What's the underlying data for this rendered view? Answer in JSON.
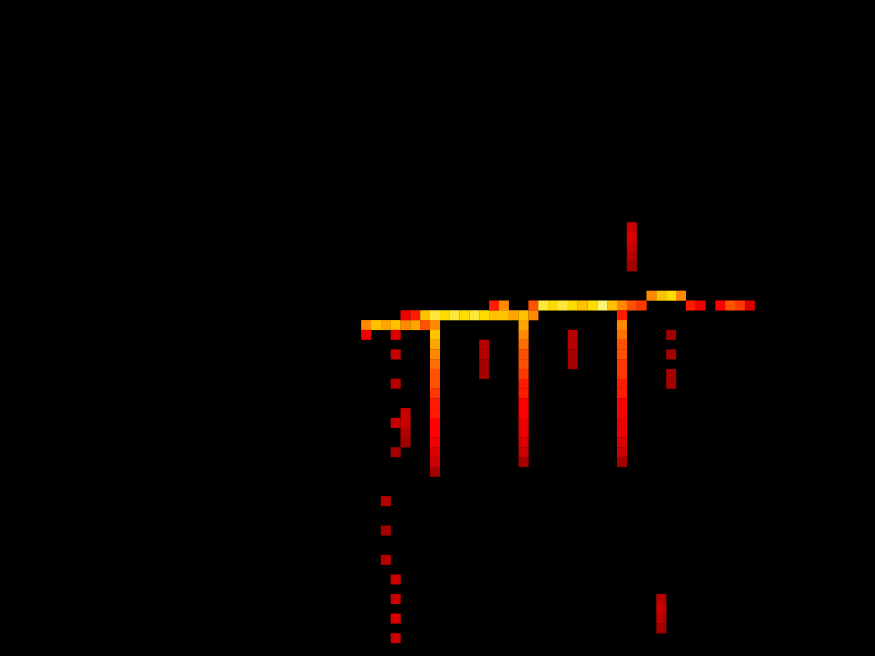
{
  "chart_data": {
    "type": "heatmap",
    "tick_labels": false,
    "grid": false,
    "xlim": [
      -0.5,
      87
    ],
    "ylim": [
      -0.5,
      65.1
    ],
    "zlim": [
      0,
      1
    ],
    "cells": [
      [
        36,
        32,
        0.7
      ],
      [
        36,
        33,
        0.4
      ],
      [
        37,
        32,
        0.8
      ],
      [
        38,
        32,
        0.75
      ],
      [
        39,
        32,
        0.8
      ],
      [
        40,
        32,
        0.7
      ],
      [
        40,
        31,
        0.4
      ],
      [
        41,
        32,
        0.75
      ],
      [
        41,
        31,
        0.5
      ],
      [
        42,
        31,
        0.8
      ],
      [
        42,
        32,
        0.6
      ],
      [
        43,
        31,
        0.9
      ],
      [
        43,
        32,
        0.7
      ],
      [
        44,
        31,
        0.85
      ],
      [
        45,
        31,
        0.9
      ],
      [
        46,
        31,
        0.85
      ],
      [
        47,
        31,
        0.9
      ],
      [
        48,
        31,
        0.85
      ],
      [
        49,
        31,
        0.8
      ],
      [
        49,
        30,
        0.5
      ],
      [
        50,
        30,
        0.7
      ],
      [
        50,
        31,
        0.8
      ],
      [
        51,
        31,
        0.75
      ],
      [
        52,
        31,
        0.8
      ],
      [
        53,
        31,
        0.7
      ],
      [
        53,
        30,
        0.6
      ],
      [
        54,
        30,
        0.9
      ],
      [
        55,
        30,
        0.85
      ],
      [
        56,
        30,
        0.9
      ],
      [
        57,
        30,
        0.85
      ],
      [
        58,
        30,
        0.8
      ],
      [
        59,
        30,
        0.85
      ],
      [
        60,
        30,
        0.95
      ],
      [
        61,
        30,
        0.8
      ],
      [
        62,
        30,
        0.7
      ],
      [
        62,
        31,
        0.5
      ],
      [
        63,
        30,
        0.6
      ],
      [
        64,
        30,
        0.55
      ],
      [
        65,
        29,
        0.7
      ],
      [
        66,
        29,
        0.8
      ],
      [
        67,
        29,
        0.85
      ],
      [
        68,
        29,
        0.7
      ],
      [
        69,
        30,
        0.5
      ],
      [
        70,
        30,
        0.4
      ],
      [
        72,
        30,
        0.45
      ],
      [
        73,
        30,
        0.6
      ],
      [
        74,
        30,
        0.55
      ],
      [
        75,
        30,
        0.35
      ],
      [
        43,
        33,
        0.8
      ],
      [
        43,
        34,
        0.75
      ],
      [
        43,
        35,
        0.7
      ],
      [
        43,
        36,
        0.65
      ],
      [
        43,
        37,
        0.6
      ],
      [
        43,
        38,
        0.6
      ],
      [
        43,
        39,
        0.55
      ],
      [
        43,
        40,
        0.5
      ],
      [
        43,
        41,
        0.5
      ],
      [
        43,
        42,
        0.45
      ],
      [
        43,
        43,
        0.45
      ],
      [
        43,
        44,
        0.4
      ],
      [
        43,
        45,
        0.35
      ],
      [
        43,
        46,
        0.3
      ],
      [
        43,
        47,
        0.2
      ],
      [
        52,
        32,
        0.75
      ],
      [
        52,
        33,
        0.7
      ],
      [
        52,
        34,
        0.65
      ],
      [
        52,
        35,
        0.6
      ],
      [
        52,
        36,
        0.6
      ],
      [
        52,
        37,
        0.55
      ],
      [
        52,
        38,
        0.5
      ],
      [
        52,
        39,
        0.5
      ],
      [
        52,
        40,
        0.45
      ],
      [
        52,
        41,
        0.45
      ],
      [
        52,
        42,
        0.4
      ],
      [
        52,
        43,
        0.4
      ],
      [
        52,
        44,
        0.35
      ],
      [
        52,
        45,
        0.3
      ],
      [
        52,
        46,
        0.2
      ],
      [
        62,
        32,
        0.7
      ],
      [
        62,
        33,
        0.65
      ],
      [
        62,
        34,
        0.6
      ],
      [
        62,
        35,
        0.6
      ],
      [
        62,
        36,
        0.55
      ],
      [
        62,
        37,
        0.55
      ],
      [
        62,
        38,
        0.5
      ],
      [
        62,
        39,
        0.5
      ],
      [
        62,
        40,
        0.45
      ],
      [
        62,
        41,
        0.45
      ],
      [
        62,
        42,
        0.4
      ],
      [
        62,
        43,
        0.4
      ],
      [
        62,
        44,
        0.35
      ],
      [
        62,
        45,
        0.3
      ],
      [
        62,
        46,
        0.2
      ],
      [
        39,
        33,
        0.35
      ],
      [
        39,
        35,
        0.3
      ],
      [
        39,
        38,
        0.25
      ],
      [
        39,
        42,
        0.3
      ],
      [
        39,
        45,
        0.2
      ],
      [
        38,
        50,
        0.25
      ],
      [
        38,
        53,
        0.2
      ],
      [
        38,
        56,
        0.25
      ],
      [
        39,
        58,
        0.3
      ],
      [
        39,
        60,
        0.3
      ],
      [
        39,
        62,
        0.35
      ],
      [
        39,
        64,
        0.3
      ],
      [
        40,
        41,
        0.3
      ],
      [
        40,
        42,
        0.3
      ],
      [
        40,
        43,
        0.25
      ],
      [
        40,
        44,
        0.2
      ],
      [
        63,
        22,
        0.3
      ],
      [
        63,
        23,
        0.35
      ],
      [
        63,
        24,
        0.3
      ],
      [
        63,
        25,
        0.25
      ],
      [
        63,
        26,
        0.2
      ],
      [
        66,
        60,
        0.25
      ],
      [
        66,
        61,
        0.3
      ],
      [
        66,
        62,
        0.25
      ],
      [
        66,
        63,
        0.2
      ],
      [
        48,
        34,
        0.25
      ],
      [
        48,
        35,
        0.25
      ],
      [
        48,
        36,
        0.2
      ],
      [
        48,
        37,
        0.2
      ],
      [
        57,
        33,
        0.25
      ],
      [
        57,
        34,
        0.25
      ],
      [
        57,
        35,
        0.2
      ],
      [
        57,
        36,
        0.2
      ],
      [
        67,
        33,
        0.2
      ],
      [
        67,
        35,
        0.2
      ],
      [
        67,
        37,
        0.2
      ],
      [
        67,
        38,
        0.2
      ]
    ]
  }
}
